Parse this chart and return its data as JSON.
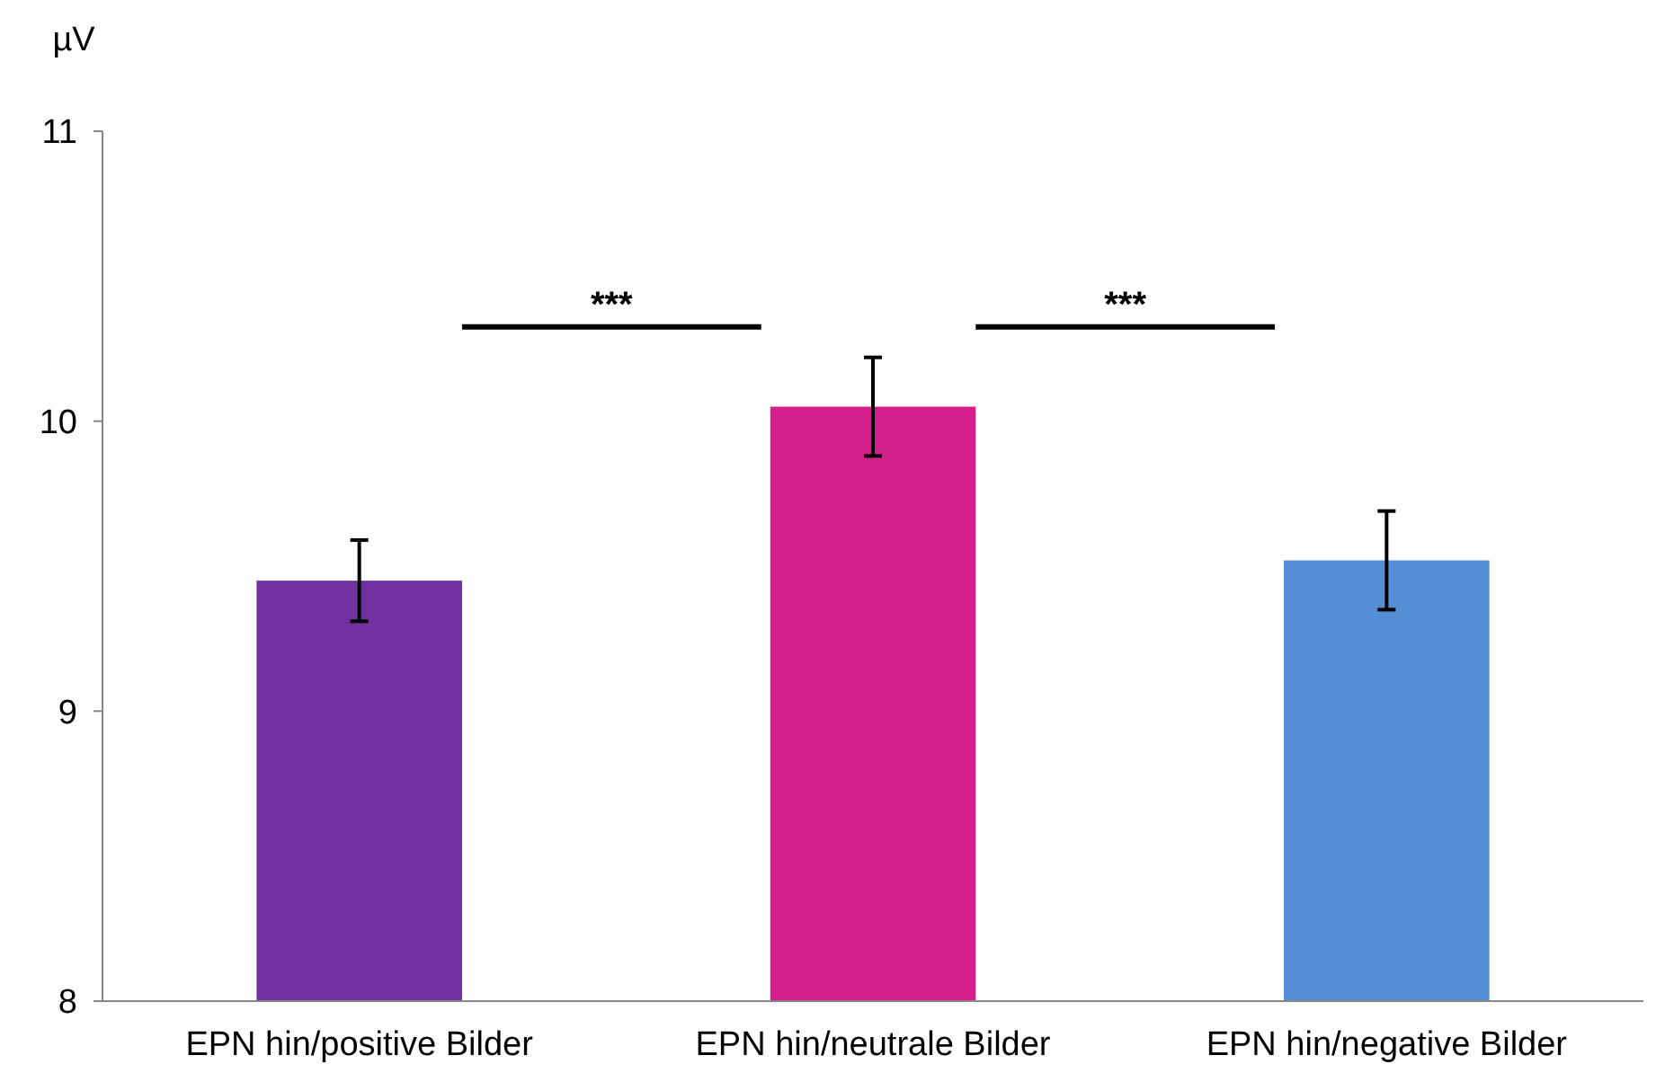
{
  "chart_data": {
    "type": "bar",
    "ylabel": "µV",
    "categories": [
      "EPN hin/positive Bilder",
      "EPN hin/neutrale Bilder",
      "EPN hin/negative Bilder"
    ],
    "values": [
      9.45,
      10.05,
      9.52
    ],
    "colors": [
      "#7030a0",
      "#d41f8c",
      "#558ed5"
    ],
    "errors": [
      0.14,
      0.17,
      0.17
    ],
    "ylim": [
      8,
      11
    ],
    "yticks": [
      8,
      9,
      10,
      11
    ],
    "grid": false,
    "annotations": [
      "***",
      "***"
    ]
  }
}
